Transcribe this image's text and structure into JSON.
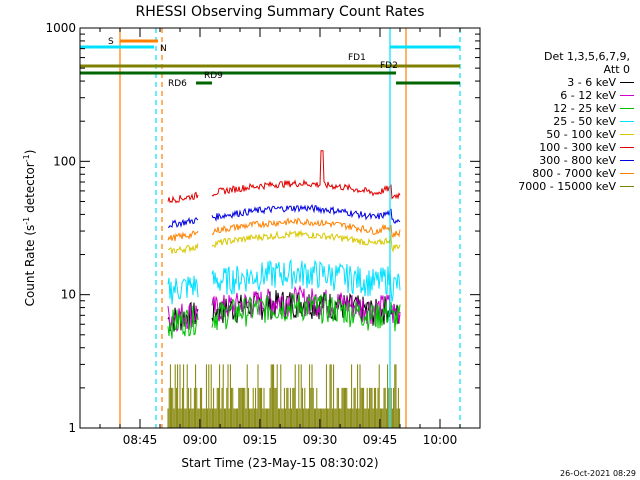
{
  "chart_data": {
    "type": "line",
    "title": "RHESSI Observing Summary Count Rates",
    "xlabel": "Start Time (23-May-15 08:30:02)",
    "ylabel_main": "Count Rate (s",
    "ylabel_sup1": "-1",
    "ylabel_mid": " detector",
    "ylabel_sup2": "-1",
    "ylabel_end": ")",
    "y_scale": "log",
    "ylim": [
      1,
      1000
    ],
    "xlim_minutes": [
      0,
      100
    ],
    "x_ticks": [
      {
        "label": "08:45",
        "minute": 15
      },
      {
        "label": "09:00",
        "minute": 30
      },
      {
        "label": "09:15",
        "minute": 45
      },
      {
        "label": "09:30",
        "minute": 60
      },
      {
        "label": "09:45",
        "minute": 75
      },
      {
        "label": "10:00",
        "minute": 90
      }
    ],
    "y_ticks": [
      {
        "label": "1",
        "value": 1
      },
      {
        "label": "10",
        "value": 10
      },
      {
        "label": "100",
        "value": 100
      },
      {
        "label": "1000",
        "value": 1000
      }
    ],
    "legend_header": [
      "Det 1,3,5,6,7,9,",
      "Att 0"
    ],
    "series": [
      {
        "name": "3 - 6 keV",
        "color": "#000000",
        "level": 7.5
      },
      {
        "name": "6 - 12 keV",
        "color": "#d000d0",
        "level": 7.8
      },
      {
        "name": "12 - 25 keV",
        "color": "#00c000",
        "level": 7.0
      },
      {
        "name": "25 - 50 keV",
        "color": "#00e0ff",
        "level": 12.5
      },
      {
        "name": "50 - 100 keV",
        "color": "#d8c800",
        "level": 24
      },
      {
        "name": "100 - 300 keV",
        "color": "#e00000",
        "level": 58
      },
      {
        "name": "300 - 800 keV",
        "color": "#0000e0",
        "level": 38
      },
      {
        "name": "800 - 7000 keV",
        "color": "#ff8000",
        "level": 30
      },
      {
        "name": "7000 - 15000 keV",
        "color": "#808000",
        "level": 1.5
      }
    ],
    "flags": [
      {
        "label": "S",
        "color": "#ff8000"
      },
      {
        "label": "N",
        "color": "#00e0ff"
      },
      {
        "label": "FD1",
        "color": "#808000"
      },
      {
        "label": "FD2",
        "color": "#808000"
      },
      {
        "label": "RD6",
        "color": "#006400"
      },
      {
        "label": "RD9",
        "color": "#006400"
      }
    ]
  },
  "footer_stamp": "26-Oct-2021 08:29"
}
